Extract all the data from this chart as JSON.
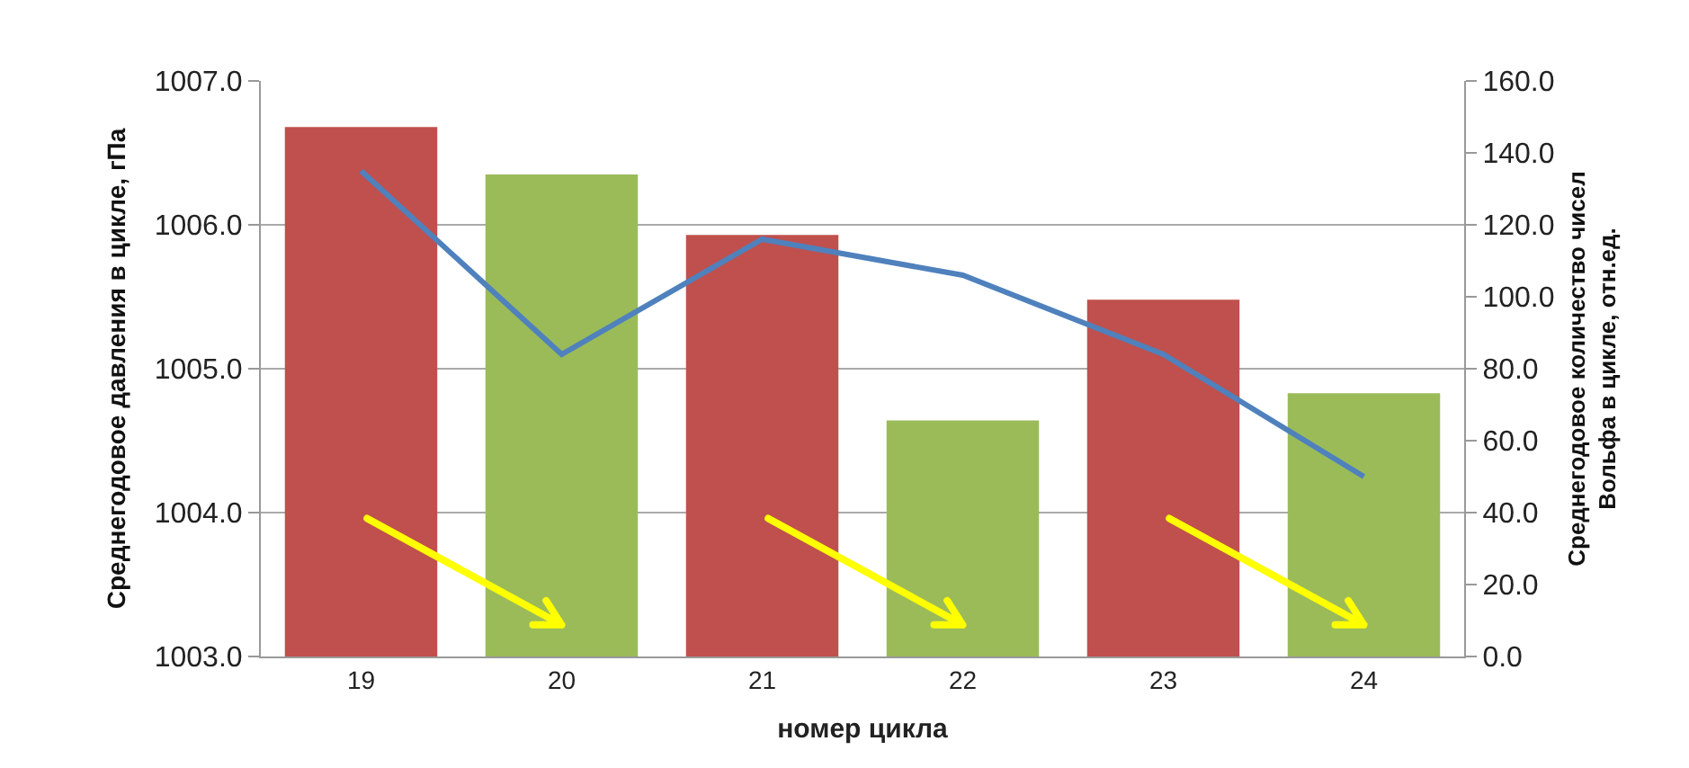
{
  "chart_data": {
    "type": "bar",
    "categories": [
      "19",
      "20",
      "21",
      "22",
      "23",
      "24"
    ],
    "xlabel": "номер цикла",
    "ylabel": "Среднегодовое давления в цикле, гПа",
    "y2label": "Среднегодовое количество чисел Вольфа в цикле, отн.ед.",
    "series": [
      {
        "colors": [
          "#c0504d",
          "#9bbb59",
          "#c0504d",
          "#9bbb59",
          "#c0504d",
          "#9bbb59"
        ],
        "values": [
          1006.68,
          1006.35,
          1005.93,
          1004.64,
          1005.48,
          1004.83
        ]
      },
      {
        "type": "line",
        "axis": "y2",
        "color": "#4f81bd",
        "values": [
          135,
          84,
          116,
          106,
          84,
          50
        ]
      }
    ],
    "ylim": [
      1003,
      1007
    ],
    "yticks": [
      {
        "value": 1003,
        "label": "1003.0"
      },
      {
        "value": 1004,
        "label": "1004.0"
      },
      {
        "value": 1005,
        "label": "1005.0"
      },
      {
        "value": 1006,
        "label": "1006.0"
      },
      {
        "value": 1007,
        "label": "1007.0"
      }
    ],
    "y2lim": [
      0,
      160
    ],
    "y2ticks": [
      {
        "value": 0,
        "label": "0.0"
      },
      {
        "value": 20,
        "label": "20.0"
      },
      {
        "value": 40,
        "label": "40.0"
      },
      {
        "value": 60,
        "label": "60.0"
      },
      {
        "value": 80,
        "label": "80.0"
      },
      {
        "value": 100,
        "label": "100.0"
      },
      {
        "value": 120,
        "label": "120.0"
      },
      {
        "value": 140,
        "label": "140.0"
      },
      {
        "value": 160,
        "label": "160.0"
      }
    ],
    "grid": "y",
    "legend": false,
    "marker": "none"
  }
}
